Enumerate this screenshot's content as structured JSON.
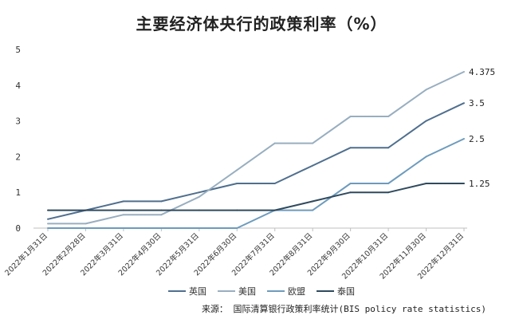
{
  "chart_data": {
    "type": "line",
    "title": "主要经济体央行的政策利率（%）",
    "categories": [
      "2022年1月31日",
      "2022年2月28日",
      "2022年3月31日",
      "2022年4月30日",
      "2022年5月31日",
      "2022年6月30日",
      "2022年7月31日",
      "2022年8月31日",
      "2022年9月30日",
      "2022年10月31日",
      "2022年11月30日",
      "2022年12月31日"
    ],
    "ylim": [
      0,
      5
    ],
    "yticks": [
      "0",
      "1",
      "2",
      "3",
      "4",
      "5"
    ],
    "grid": false,
    "legend_position": "bottom",
    "series": [
      {
        "name": "英国",
        "color": "#4f6f8f",
        "values": [
          0.25,
          0.5,
          0.75,
          0.75,
          1.0,
          1.25,
          1.25,
          1.75,
          2.25,
          2.25,
          3.0,
          3.5
        ],
        "end_label": "3.5"
      },
      {
        "name": "美国",
        "color": "#98aec0",
        "values": [
          0.125,
          0.125,
          0.375,
          0.375,
          0.875,
          1.625,
          2.375,
          2.375,
          3.125,
          3.125,
          3.875,
          4.375
        ],
        "end_label": "4.375"
      },
      {
        "name": "欧盟",
        "color": "#6d9bbd",
        "values": [
          0,
          0,
          0,
          0,
          0,
          0,
          0.5,
          0.5,
          1.25,
          1.25,
          2.0,
          2.5
        ],
        "end_label": "2.5"
      },
      {
        "name": "泰国",
        "color": "#2f4a5e",
        "values": [
          0.5,
          0.5,
          0.5,
          0.5,
          0.5,
          0.5,
          0.5,
          0.75,
          1.0,
          1.0,
          1.25,
          1.25
        ],
        "end_label": "1.25"
      }
    ],
    "source": "来源： 国际清算银行政策利率统计(BIS policy rate statistics)"
  }
}
